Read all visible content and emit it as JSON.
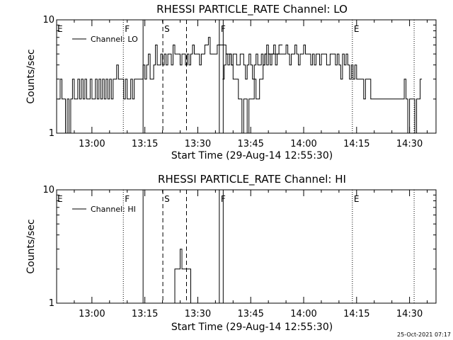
{
  "stamp": "25-Oct-2021 07:17",
  "chart_data": [
    {
      "type": "line",
      "title": "RHESSI PARTICLE_RATE Channel: LO",
      "xlabel": "Start Time (29-Aug-14 12:55:30)",
      "ylabel": "Counts/sec",
      "yscale": "log",
      "ylim": [
        1,
        10
      ],
      "xlim_minutes": [
        -5.5,
        102
      ],
      "y_ticks": [
        "1",
        "10"
      ],
      "x_ticks": [
        {
          "t": 4.5,
          "label": "13:00"
        },
        {
          "t": 19.5,
          "label": "13:15"
        },
        {
          "t": 34.5,
          "label": "13:30"
        },
        {
          "t": 49.5,
          "label": "13:45"
        },
        {
          "t": 64.5,
          "label": "14:00"
        },
        {
          "t": 79.5,
          "label": "14:15"
        },
        {
          "t": 94.5,
          "label": "14:30"
        }
      ],
      "legend": {
        "label": "Channel: LO",
        "placement": "top-left"
      },
      "markers": [
        {
          "t": 13.4,
          "style": "dotted",
          "label": "F"
        },
        {
          "t": 19.0,
          "style": "solid",
          "label": ""
        },
        {
          "t": 24.6,
          "style": "dashed",
          "label": "S"
        },
        {
          "t": 31.3,
          "style": "dashed",
          "label": ""
        },
        {
          "t": 40.6,
          "style": "solid",
          "label": "F"
        },
        {
          "t": 41.7,
          "style": "solid",
          "label": ""
        },
        {
          "t": 78.3,
          "style": "dotted",
          "label": "E"
        },
        {
          "t": 95.8,
          "style": "dotted",
          "label": ""
        }
      ],
      "edge_labels": [
        {
          "t": -5.5,
          "label": "E"
        }
      ],
      "series": [
        {
          "name": "Channel: LO",
          "segments": [
            {
              "t0": -5.0,
              "dt": 0.5,
              "values": [
                2,
                3,
                2,
                2,
                1,
                2,
                1,
                2,
                3,
                2,
                2,
                3,
                2,
                3,
                2,
                3,
                2,
                2,
                3,
                2,
                2,
                3,
                2,
                3,
                2,
                3,
                2,
                3,
                2,
                3,
                2,
                3,
                3,
                4,
                3,
                3,
                3,
                2,
                3,
                2,
                2,
                3,
                2,
                3,
                3,
                3,
                3,
                3,
                4,
                3,
                4,
                5,
                3,
                3,
                4,
                6,
                4,
                4,
                5,
                4,
                5,
                4,
                5,
                5,
                4,
                6,
                5,
                5,
                5,
                4,
                5,
                5,
                4,
                5,
                4,
                5,
                6,
                5,
                5,
                5,
                4,
                5,
                5,
                6,
                6,
                7,
                5,
                5,
                5,
                5,
                6,
                6,
                6,
                6,
                6,
                5,
                5,
                5,
                4,
                3,
                3,
                3,
                2,
                2,
                1,
                2,
                2,
                1,
                2,
                2,
                2,
                3,
                2,
                2,
                3,
                3,
                4,
                5,
                6,
                5,
                4,
                5,
                6,
                5,
                5,
                6,
                6
              ]
            },
            {
              "t0": 41.5,
              "dt": 0.5,
              "values": [
                3,
                4,
                5,
                4,
                5,
                4,
                5,
                5,
                4,
                4,
                5,
                5,
                4,
                3,
                4,
                5,
                4,
                3,
                4,
                5,
                4,
                4,
                5,
                4,
                5,
                4,
                5,
                5,
                5,
                5,
                4,
                5,
                5,
                5,
                5,
                5,
                6,
                5,
                4,
                5,
                5,
                6,
                5,
                4,
                5,
                5,
                6,
                5,
                5,
                5,
                4,
                5,
                4,
                5,
                5,
                4,
                5,
                5,
                5,
                4,
                4,
                5,
                5,
                5,
                4,
                5,
                4,
                3,
                5,
                4,
                5,
                4,
                3,
                4,
                3,
                4,
                3,
                3,
                3,
                3,
                2,
                3,
                3,
                3,
                2,
                2,
                2,
                2,
                2,
                2,
                2,
                2,
                2,
                2,
                2,
                2,
                2,
                2,
                2,
                2,
                2,
                2,
                2,
                3,
                2,
                1,
                2,
                2,
                2,
                1,
                2,
                2,
                3
              ]
            }
          ]
        }
      ]
    },
    {
      "type": "line",
      "title": "RHESSI PARTICLE_RATE Channel: HI",
      "xlabel": "Start Time (29-Aug-14 12:55:30)",
      "ylabel": "Counts/sec",
      "yscale": "log",
      "ylim": [
        1,
        10
      ],
      "xlim_minutes": [
        -5.5,
        102
      ],
      "y_ticks": [
        "1",
        "10"
      ],
      "x_ticks": [
        {
          "t": 4.5,
          "label": "13:00"
        },
        {
          "t": 19.5,
          "label": "13:15"
        },
        {
          "t": 34.5,
          "label": "13:30"
        },
        {
          "t": 49.5,
          "label": "13:45"
        },
        {
          "t": 64.5,
          "label": "14:00"
        },
        {
          "t": 79.5,
          "label": "14:15"
        },
        {
          "t": 94.5,
          "label": "14:30"
        }
      ],
      "legend": {
        "label": "Channel: HI",
        "placement": "top-left"
      },
      "markers": [
        {
          "t": 13.4,
          "style": "dotted",
          "label": "F"
        },
        {
          "t": 19.0,
          "style": "solid",
          "label": ""
        },
        {
          "t": 24.6,
          "style": "dashed",
          "label": "S"
        },
        {
          "t": 31.3,
          "style": "dashed",
          "label": ""
        },
        {
          "t": 40.6,
          "style": "solid",
          "label": "F"
        },
        {
          "t": 41.7,
          "style": "solid",
          "label": ""
        },
        {
          "t": 78.3,
          "style": "dotted",
          "label": "E"
        },
        {
          "t": 95.8,
          "style": "dotted",
          "label": ""
        }
      ],
      "edge_labels": [
        {
          "t": -5.5,
          "label": "E"
        }
      ],
      "series": [
        {
          "name": "Channel: HI",
          "segments": [
            {
              "t0": 26.5,
              "dt": 0.5,
              "values": [
                1,
                1,
                1,
                2,
                2,
                2,
                3,
                2,
                2,
                2,
                2,
                2,
                1,
                1,
                1
              ]
            }
          ]
        }
      ]
    }
  ]
}
